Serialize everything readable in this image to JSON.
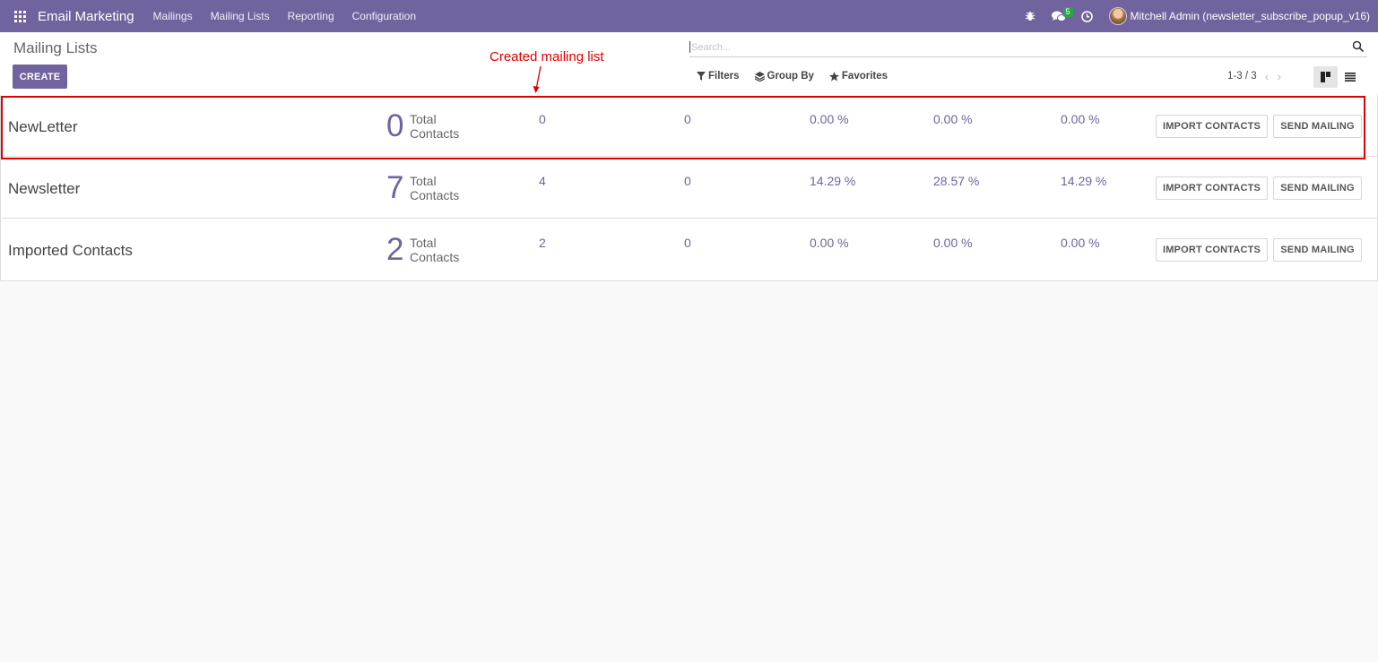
{
  "navbar": {
    "app_name": "Email Marketing",
    "menu": [
      "Mailings",
      "Mailing Lists",
      "Reporting",
      "Configuration"
    ],
    "chat_badge": "5",
    "user": "Mitchell Admin (newsletter_subscribe_popup_v16)",
    "color": "#71639e"
  },
  "control_panel": {
    "breadcrumb": "Mailing Lists",
    "create_label": "CREATE",
    "search_placeholder": "Search...",
    "filters_label": "Filters",
    "group_by_label": "Group By",
    "favorites_label": "Favorites",
    "pager": "1-3 / 3"
  },
  "annotation": {
    "text": "Created mailing list",
    "color": "#e00000"
  },
  "rows": [
    {
      "name": "NewLetter",
      "total": "0",
      "total_label": "Total Contacts",
      "s1": "0",
      "s2": "0",
      "s3": "0.00 %",
      "s4": "0.00 %",
      "s5": "0.00 %",
      "import_label": "IMPORT CONTACTS",
      "send_label": "SEND MAILING"
    },
    {
      "name": "Newsletter",
      "total": "7",
      "total_label": "Total Contacts",
      "s1": "4",
      "s2": "0",
      "s3": "14.29 %",
      "s4": "28.57 %",
      "s5": "14.29 %",
      "import_label": "IMPORT CONTACTS",
      "send_label": "SEND MAILING"
    },
    {
      "name": "Imported Contacts",
      "total": "2",
      "total_label": "Total Contacts",
      "s1": "2",
      "s2": "0",
      "s3": "0.00 %",
      "s4": "0.00 %",
      "s5": "0.00 %",
      "import_label": "IMPORT CONTACTS",
      "send_label": "SEND MAILING"
    }
  ]
}
